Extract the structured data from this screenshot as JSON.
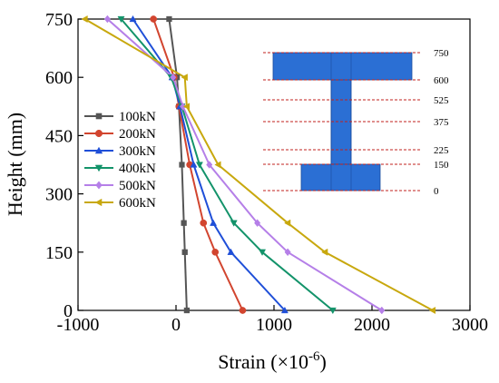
{
  "chart_data": {
    "type": "line",
    "xlabel": "Strain (×10",
    "xlabel_sup": "-6",
    "xlabel_end": ")",
    "ylabel": "Height (mm)",
    "xlim": [
      -1000,
      3000
    ],
    "ylim": [
      0,
      750
    ],
    "xticks": [
      "-1000",
      "0",
      "1000",
      "2000",
      "3000"
    ],
    "yticks": [
      "0",
      "150",
      "300",
      "450",
      "600",
      "750"
    ],
    "grid": false,
    "legend_position": "left-middle",
    "y": [
      0,
      150,
      225,
      375,
      525,
      600,
      750
    ],
    "series": [
      {
        "name": "100kN",
        "color": "#555555",
        "marker": "square",
        "x": [
          110,
          90,
          80,
          60,
          30,
          10,
          -70
        ]
      },
      {
        "name": "200kN",
        "color": "#d2452f",
        "marker": "circle",
        "x": [
          680,
          400,
          280,
          140,
          30,
          -20,
          -230
        ]
      },
      {
        "name": "300kN",
        "color": "#1f4fd8",
        "marker": "triangle-up",
        "x": [
          1110,
          560,
          380,
          180,
          40,
          -40,
          -440
        ]
      },
      {
        "name": "400kN",
        "color": "#13936a",
        "marker": "triangle-down",
        "x": [
          1600,
          880,
          590,
          240,
          60,
          -50,
          -560
        ]
      },
      {
        "name": "500kN",
        "color": "#b57fe8",
        "marker": "diamond",
        "x": [
          2100,
          1140,
          830,
          340,
          70,
          -30,
          -700
        ]
      },
      {
        "name": "600kN",
        "color": "#c8a80e",
        "marker": "triangle-left",
        "x": [
          2620,
          1520,
          1140,
          430,
          110,
          90,
          -930
        ]
      }
    ]
  },
  "inset": {
    "labels": [
      "750",
      "600",
      "525",
      "375",
      "225",
      "150",
      "0"
    ],
    "section_color": "#2b6fd4",
    "line_color": "#c0211e"
  }
}
